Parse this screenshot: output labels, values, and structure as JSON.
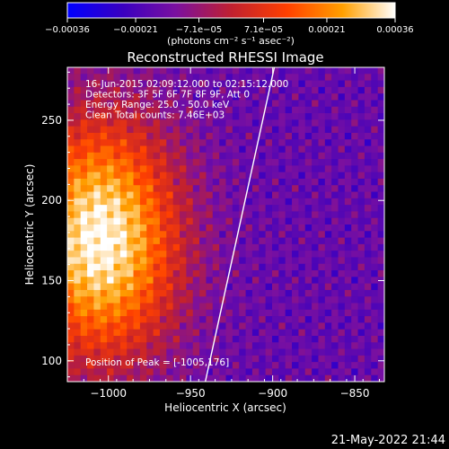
{
  "chart_data": {
    "type": "heatmap",
    "title": "Reconstructed RHESSI Image",
    "xlabel": "Heliocentric X (arcsec)",
    "ylabel": "Heliocentric Y (arcsec)",
    "xlim": [
      -1025,
      -832
    ],
    "ylim": [
      87,
      283
    ],
    "x_ticks": [
      -1000,
      -950,
      -900,
      -850
    ],
    "x_tick_labels": [
      "−1000",
      "−950",
      "−900",
      "−850"
    ],
    "y_ticks": [
      100,
      150,
      200,
      250
    ],
    "y_tick_labels": [
      "100",
      "150",
      "200",
      "250"
    ],
    "colorbar": {
      "range": [
        -0.00036,
        0.00036
      ],
      "ticks": [
        -0.00036,
        -0.00021,
        -7.1e-05,
        7.1e-05,
        0.00021,
        0.00036
      ],
      "tick_labels": [
        "−0.00036",
        "−0.00021",
        "−7.1e−05",
        "7.1e−05",
        "0.00021",
        "0.00036"
      ],
      "units": "(photons cm⁻² s⁻¹ asec⁻²)",
      "colors": [
        "#0000ff",
        "#3a00c0",
        "#7a10a0",
        "#c02030",
        "#ff4000",
        "#ffa000",
        "#ffffff"
      ]
    },
    "annotations": [
      "16-Jun-2015 02:09:12.000 to 02:15:12.000",
      "Detectors: 3F 5F 6F 7F 8F 9F, Att 0",
      "Energy Range: 25.0 - 50.0 keV",
      "Clean     Total counts: 7.46E+03"
    ],
    "peak_label": "Position of Peak = [-1005,176]",
    "peak_position": [
      -1005,
      176
    ],
    "limb_line": [
      [
        -941,
        87
      ],
      [
        -899,
        283
      ]
    ],
    "grid": false
  },
  "footer": {
    "timestamp": "21-May-2022 21:44"
  }
}
